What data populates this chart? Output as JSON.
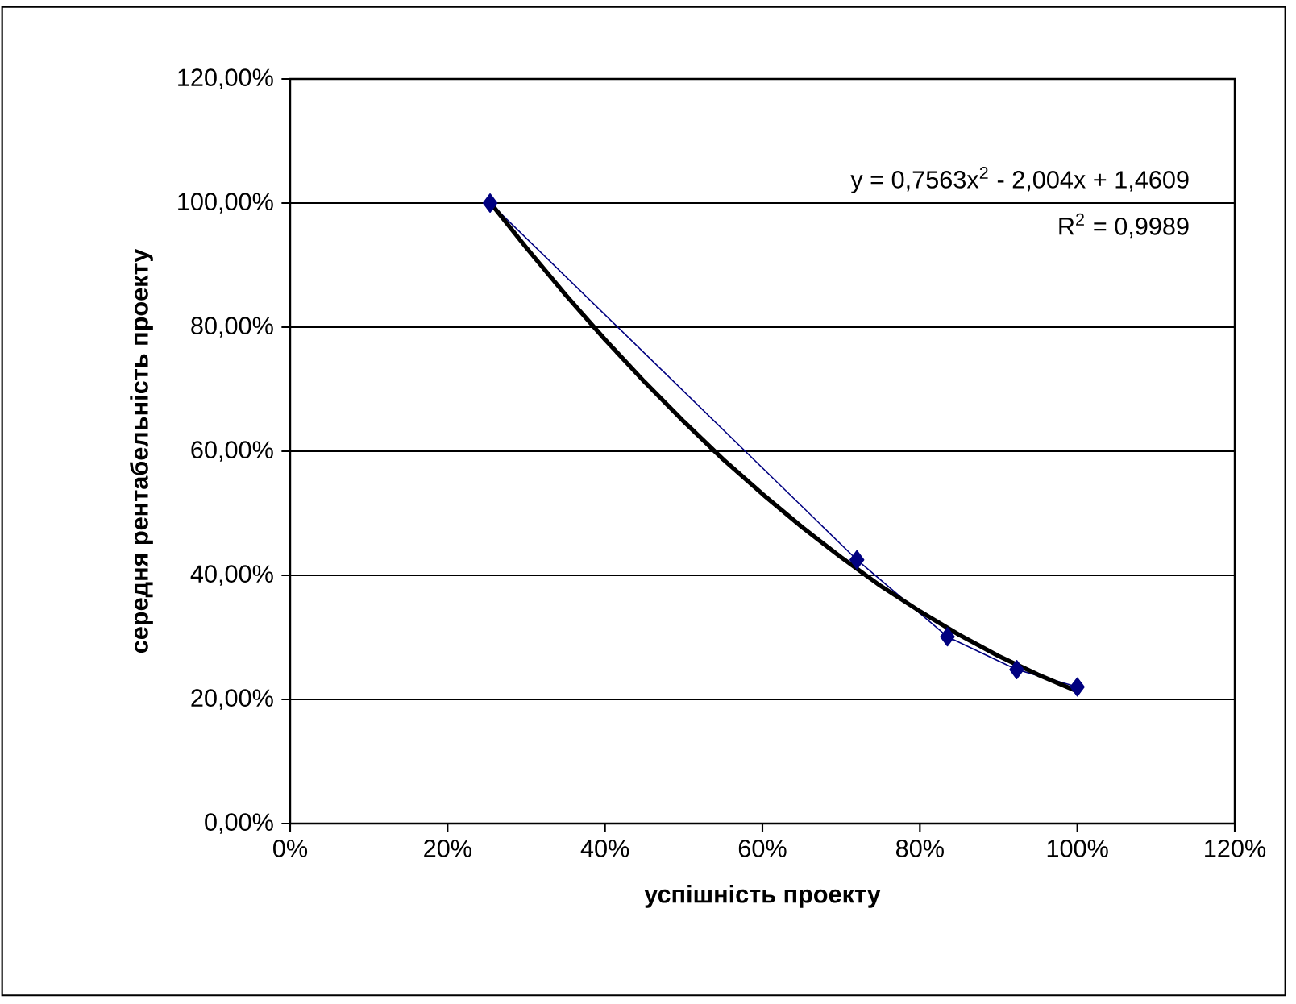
{
  "chart_data": {
    "type": "line",
    "xlabel": "успішність проекту",
    "ylabel": "середня рентабельність проекту",
    "annotations": [
      "y = 0,7563x$^{2}$ - 2,004x + 1,4609",
      "R$^{2}$ = 0,9989"
    ],
    "series": [
      {
        "color": "#000080",
        "marker": "diamond",
        "x": [
          25.4,
          72,
          83.5,
          92.3,
          100
        ],
        "values": [
          100,
          42.5,
          30.1,
          24.8,
          22.0
        ]
      },
      {
        "type": "line",
        "color": "#000000",
        "marker": "none",
        "x": [
          25.4,
          30,
          35,
          40,
          45,
          50,
          55,
          60,
          65,
          70,
          75,
          80,
          85,
          90,
          95,
          100
        ],
        "values": [
          100.1,
          92.8,
          85.2,
          78.0,
          71.2,
          64.8,
          58.7,
          53.1,
          47.8,
          42.9,
          38.3,
          34.2,
          30.4,
          27.0,
          24.0,
          21.3
        ]
      }
    ],
    "xlim": [
      0,
      120
    ],
    "ylim": [
      0,
      120
    ],
    "xticks": [
      {
        "value": 0,
        "label": "0%"
      },
      {
        "value": 20,
        "label": "20%"
      },
      {
        "value": 40,
        "label": "40%"
      },
      {
        "value": 60,
        "label": "60%"
      },
      {
        "value": 80,
        "label": "80%"
      },
      {
        "value": 100,
        "label": "100%"
      },
      {
        "value": 120,
        "label": "120%"
      }
    ],
    "yticks": [
      {
        "value": 0,
        "label": "0,00%"
      },
      {
        "value": 20,
        "label": "20,00%"
      },
      {
        "value": 40,
        "label": "40,00%"
      },
      {
        "value": 60,
        "label": "60,00%"
      },
      {
        "value": 80,
        "label": "80,00%"
      },
      {
        "value": 100,
        "label": "100,00%"
      },
      {
        "value": 120,
        "label": "120,00%"
      }
    ],
    "grid": "y"
  }
}
